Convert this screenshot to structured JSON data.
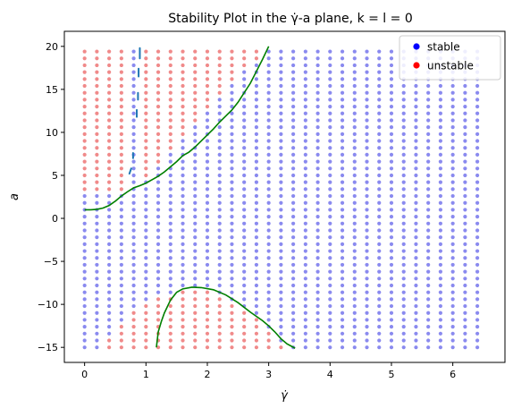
{
  "chart_data": {
    "type": "scatter",
    "title": "Stability Plot in the γ̇-a plane, k = l = 0",
    "xlabel": "γ̇",
    "ylabel": "a",
    "xlim": [
      -0.33,
      6.85
    ],
    "ylim": [
      -16.75,
      21.75
    ],
    "xticks": [
      0,
      1,
      2,
      3,
      4,
      5,
      6
    ],
    "yticks": [
      -15,
      -10,
      -5,
      0,
      5,
      10,
      15,
      20
    ],
    "grid": false,
    "legend": {
      "position": "top-right",
      "entries": [
        {
          "label": "stable",
          "color": "#0000ff"
        },
        {
          "label": "unstable",
          "color": "#ff0000"
        }
      ]
    },
    "grid_points": {
      "x_start": 0,
      "x_step": 0.2,
      "x_count": 33,
      "y_start": -15,
      "y_step": 0.8,
      "y_count": 44,
      "stable_color": "#8a8aef",
      "unstable_color": "#f08a8a"
    },
    "boundary_curves": [
      {
        "color": "#008000",
        "points": [
          [
            0,
            1.0
          ],
          [
            0.1,
            1.0
          ],
          [
            0.2,
            1.05
          ],
          [
            0.3,
            1.2
          ],
          [
            0.4,
            1.5
          ],
          [
            0.5,
            2.0
          ],
          [
            0.6,
            2.6
          ],
          [
            0.7,
            3.1
          ],
          [
            0.8,
            3.55
          ],
          [
            0.9,
            3.8
          ],
          [
            1.0,
            4.1
          ],
          [
            1.1,
            4.5
          ],
          [
            1.2,
            4.9
          ],
          [
            1.3,
            5.4
          ],
          [
            1.4,
            6.0
          ],
          [
            1.5,
            6.6
          ],
          [
            1.6,
            7.3
          ],
          [
            1.7,
            7.7
          ],
          [
            1.8,
            8.3
          ],
          [
            1.9,
            9.0
          ],
          [
            2.0,
            9.7
          ],
          [
            2.1,
            10.4
          ],
          [
            2.2,
            11.2
          ],
          [
            2.3,
            11.9
          ],
          [
            2.4,
            12.6
          ],
          [
            2.5,
            13.5
          ],
          [
            2.6,
            14.6
          ],
          [
            2.7,
            15.7
          ],
          [
            2.8,
            17.1
          ],
          [
            2.9,
            18.5
          ],
          [
            3.0,
            20.0
          ]
        ]
      },
      {
        "color": "#008000",
        "points": [
          [
            1.17,
            -15.0
          ],
          [
            1.2,
            -13.2
          ],
          [
            1.25,
            -12.0
          ],
          [
            1.3,
            -11.0
          ],
          [
            1.4,
            -9.5
          ],
          [
            1.5,
            -8.6
          ],
          [
            1.6,
            -8.2
          ],
          [
            1.75,
            -8.0
          ],
          [
            1.9,
            -8.05
          ],
          [
            2.1,
            -8.3
          ],
          [
            2.3,
            -8.9
          ],
          [
            2.5,
            -9.8
          ],
          [
            2.7,
            -10.9
          ],
          [
            2.9,
            -11.9
          ],
          [
            3.0,
            -12.5
          ],
          [
            3.1,
            -13.2
          ],
          [
            3.2,
            -14.0
          ],
          [
            3.3,
            -14.6
          ],
          [
            3.43,
            -15.1
          ]
        ]
      }
    ],
    "boundary_segments": [
      {
        "color": "#1f77b4",
        "from": [
          0.9,
          18.6
        ],
        "to": [
          0.9,
          19.8
        ]
      },
      {
        "color": "#1f77b4",
        "from": [
          0.88,
          16.5
        ],
        "to": [
          0.88,
          17.4
        ]
      },
      {
        "color": "#1f77b4",
        "from": [
          0.87,
          13.8
        ],
        "to": [
          0.87,
          14.6
        ]
      },
      {
        "color": "#1f77b4",
        "from": [
          0.85,
          11.8
        ],
        "to": [
          0.85,
          12.6
        ]
      },
      {
        "color": "#1f77b4",
        "from": [
          0.79,
          7.0
        ],
        "to": [
          0.79,
          7.6
        ]
      },
      {
        "color": "#1f77b4",
        "from": [
          0.73,
          5.2
        ],
        "to": [
          0.76,
          5.8
        ]
      }
    ]
  }
}
